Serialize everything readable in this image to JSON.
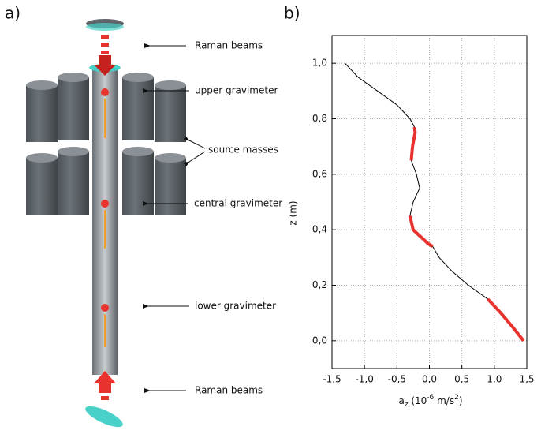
{
  "panel_a": {
    "label": "a)",
    "annotations": [
      "Raman beams",
      "upper gravimeter",
      "source masses",
      "central gravimeter",
      "lower gravimeter",
      "Raman beams"
    ]
  },
  "chart_data": {
    "type": "line",
    "panel_label": "b)",
    "x_label": {
      "base": "a",
      "sub": "z",
      "mid": " (10",
      "sup": "-6",
      "mid2": " m/s",
      "sup2": "2",
      "end": ")"
    },
    "y_label": "z (m)",
    "xlim": [
      -1.5,
      1.5
    ],
    "ylim": [
      -0.1,
      1.1
    ],
    "xticks": [
      {
        "value": -1.5,
        "label": "-1,5"
      },
      {
        "value": -1.0,
        "label": "-1,0"
      },
      {
        "value": -0.5,
        "label": "-0,5"
      },
      {
        "value": 0,
        "label": "0,0"
      },
      {
        "value": 0.5,
        "label": "0,5"
      },
      {
        "value": 1.0,
        "label": "1,0"
      },
      {
        "value": 1.5,
        "label": "1,5"
      }
    ],
    "yticks": [
      {
        "value": 0,
        "label": "0,0"
      },
      {
        "value": 0.2,
        "label": "0,2"
      },
      {
        "value": 0.4,
        "label": "0,4"
      },
      {
        "value": 0.6,
        "label": "0,6"
      },
      {
        "value": 0.8,
        "label": "0,8"
      },
      {
        "value": 1.0,
        "label": "1,0"
      }
    ],
    "grid": true,
    "series": [
      {
        "color": "#000000",
        "width": 1,
        "x": [
          -1.3,
          -1.1,
          -0.8,
          -0.5,
          -0.3,
          -0.23,
          -0.22,
          -0.26,
          -0.28,
          -0.2,
          -0.15,
          -0.25,
          -0.3,
          -0.25,
          -0.02,
          0.05,
          0.15,
          0.35,
          0.6,
          0.9,
          1.1,
          1.28,
          1.45
        ],
        "values": [
          1.0,
          0.95,
          0.9,
          0.85,
          0.8,
          0.77,
          0.75,
          0.7,
          0.65,
          0.6,
          0.55,
          0.5,
          0.45,
          0.4,
          0.35,
          0.34,
          0.3,
          0.25,
          0.2,
          0.15,
          0.1,
          0.05,
          0.0
        ]
      },
      {
        "color": "#e8322d",
        "width": 4,
        "x": [
          -0.23,
          -0.22,
          -0.26,
          -0.28
        ],
        "values": [
          0.77,
          0.75,
          0.7,
          0.65
        ]
      },
      {
        "color": "#e8322d",
        "width": 4,
        "x": [
          -0.3,
          -0.25,
          -0.02,
          0.05
        ],
        "values": [
          0.45,
          0.4,
          0.35,
          0.34
        ]
      },
      {
        "color": "#e8322d",
        "width": 4,
        "x": [
          0.9,
          1.1,
          1.28,
          1.45
        ],
        "values": [
          0.15,
          0.1,
          0.05,
          0.0
        ]
      }
    ]
  }
}
